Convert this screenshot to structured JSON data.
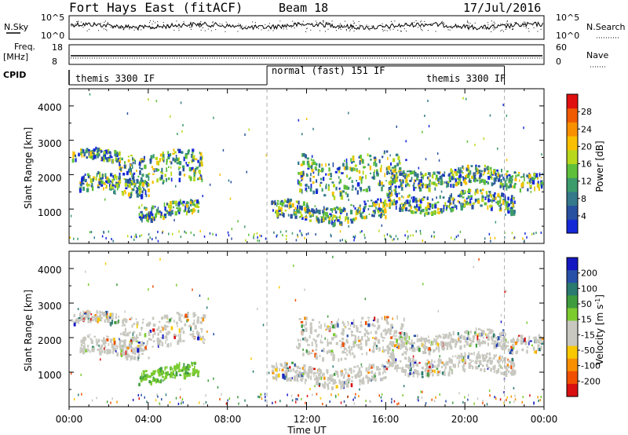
{
  "header": {
    "station": "Fort Hays East (fitACF)",
    "beam": "Beam 18",
    "date": "17/Jul/2016"
  },
  "noise_panel": {
    "left_label": "N.Sky",
    "left_ticks": [
      "10^5",
      "10^0"
    ],
    "right_ticks": [
      "10^5",
      "10^0"
    ],
    "right_label": "N.Search"
  },
  "freq_panel": {
    "left_label_1": "Freq.",
    "left_label_2": "[MHz]",
    "left_ticks": [
      "18",
      "8"
    ],
    "right_ticks": [
      "60",
      "0"
    ],
    "right_label": "Nave"
  },
  "cpid": {
    "label": "CPID",
    "segments": [
      "themis 3300 IF",
      "normal (fast) 151 IF",
      "themis 3300 IF"
    ]
  },
  "power_panel": {
    "ylabel": "Slant Range [km]",
    "yticks": [
      "1000",
      "2000",
      "3000",
      "4000"
    ],
    "colorbar_label": "Power [dB]",
    "colorbar_ticks": [
      "4",
      "8",
      "12",
      "16",
      "20",
      "24",
      "28"
    ],
    "colors": [
      "#1428d8",
      "#2850a0",
      "#347a8a",
      "#3c9c6c",
      "#5ec03a",
      "#b8d81c",
      "#f8c000",
      "#f89000",
      "#f05a00",
      "#e01010"
    ]
  },
  "velocity_panel": {
    "ylabel": "Slant Range [km]",
    "yticks": [
      "1000",
      "2000",
      "3000",
      "4000"
    ],
    "colorbar_label": "Velocity [m s^-1]",
    "colorbar_ticks": [
      "200",
      "100",
      "50",
      "15",
      "-15",
      "-50",
      "-100",
      "-200"
    ],
    "colors": [
      "#1418c0",
      "#2850a8",
      "#2a7a70",
      "#3e9c3e",
      "#7ccc30",
      "#c8c8c0",
      "#c8c8c0",
      "#f8c800",
      "#f89000",
      "#f05000",
      "#d81010"
    ],
    "ground_scatter_color": "#c8c8c0"
  },
  "xaxis": {
    "label": "Time UT",
    "ticks": [
      "00:00",
      "04:00",
      "08:00",
      "12:00",
      "16:00",
      "20:00",
      "00:00"
    ]
  },
  "chart_data": {
    "type": "heatmap",
    "title": "Fort Hays East (fitACF)",
    "subtitle": "Beam 18",
    "date": "17/Jul/2016",
    "x_unit": "hours UT",
    "xlim": [
      0,
      24
    ],
    "ylim": [
      0,
      4500
    ],
    "ylabel": "Slant Range [km]",
    "xlabel": "Time UT",
    "cpid_changes": [
      10.0,
      22.0
    ],
    "scatter_regions": [
      {
        "name": "early-upper",
        "t": [
          0.1,
          2.5
        ],
        "r": [
          2400,
          2700
        ]
      },
      {
        "name": "early-band",
        "t": [
          0.5,
          4.0
        ],
        "r": [
          1500,
          2000
        ]
      },
      {
        "name": "early-mid",
        "t": [
          2.5,
          6.8
        ],
        "r": [
          1800,
          2700
        ]
      },
      {
        "name": "early-low",
        "t": [
          3.5,
          6.5
        ],
        "r": [
          800,
          1200
        ]
      },
      {
        "name": "post-12-band",
        "t": [
          11.5,
          17.0
        ],
        "r": [
          1500,
          2600
        ]
      },
      {
        "name": "post-12-low",
        "t": [
          10.2,
          16.0
        ],
        "r": [
          700,
          1200
        ]
      },
      {
        "name": "late-band",
        "t": [
          16.0,
          24.0
        ],
        "r": [
          1700,
          2200
        ]
      },
      {
        "name": "late-low",
        "t": [
          16.0,
          22.5
        ],
        "r": [
          1000,
          1500
        ]
      }
    ],
    "power_db_range": [
      0,
      30
    ],
    "velocity_range": [
      -200,
      200
    ]
  }
}
